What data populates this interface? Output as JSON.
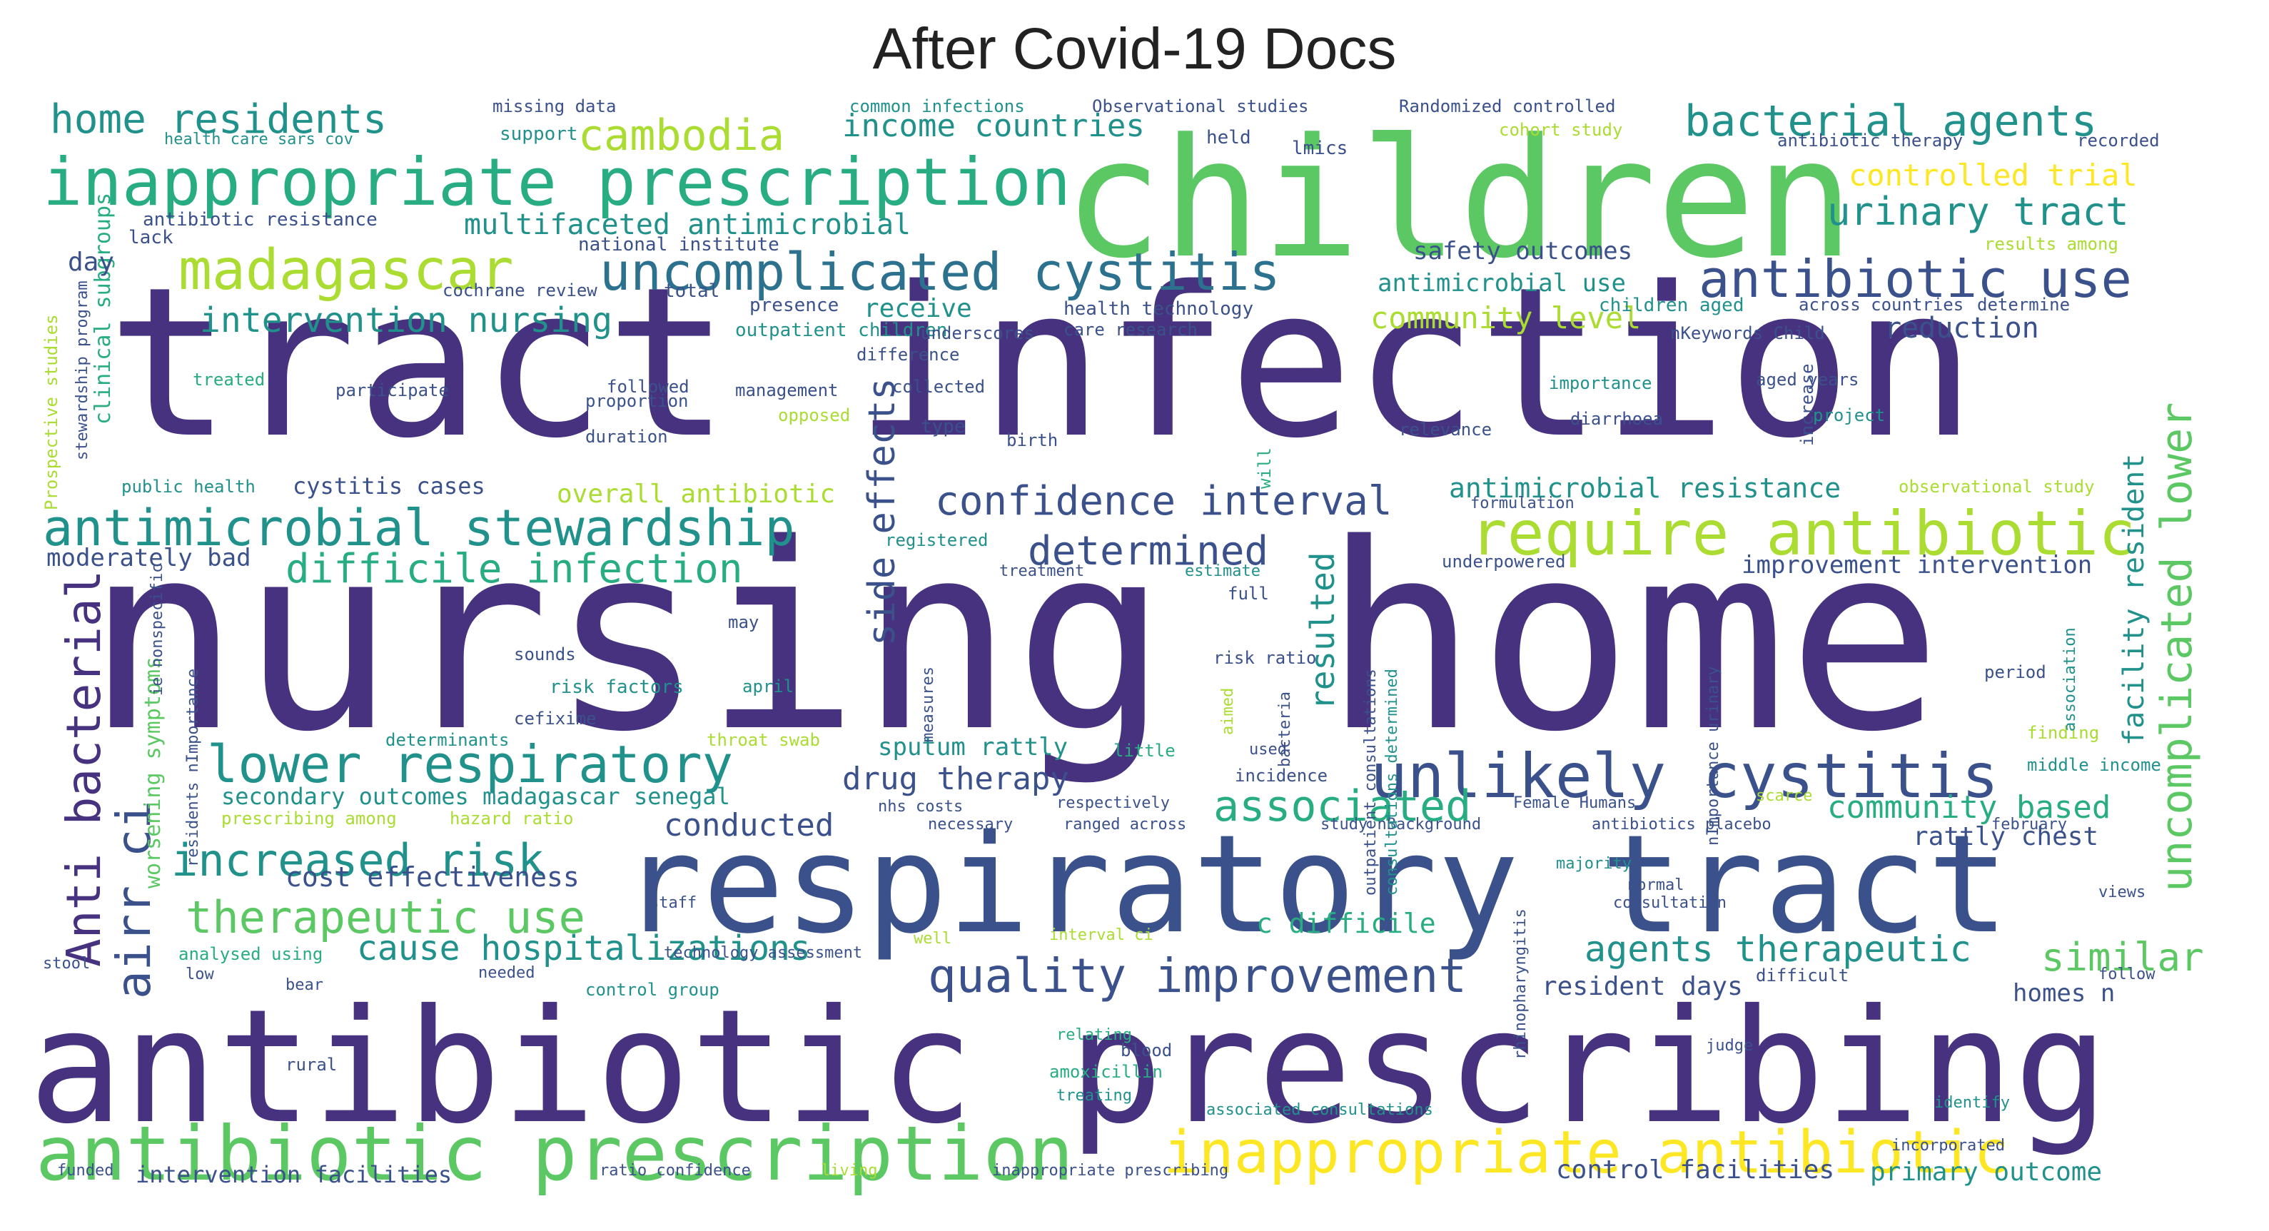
{
  "title": "After Covid-19 Docs",
  "colors": {
    "purple": "#46327e",
    "indigo": "#3b518b",
    "blue": "#2c718e",
    "teal": "#21918c",
    "sea": "#27ad81",
    "green": "#5cc863",
    "lime": "#aadc32",
    "yellow": "#fde725"
  },
  "words": [
    {
      "text": "nursing home",
      "color": "purple"
    },
    {
      "text": "tract infection",
      "color": "purple"
    },
    {
      "text": "antibiotic prescribing",
      "color": "purple"
    },
    {
      "text": "children",
      "color": "green"
    },
    {
      "text": "respiratory tract",
      "color": "indigo"
    },
    {
      "text": "inappropriate prescription",
      "color": "sea"
    },
    {
      "text": "antibiotic prescription",
      "color": "green"
    },
    {
      "text": "inappropriate antibiotic",
      "color": "yellow"
    },
    {
      "text": "unlikely cystitis",
      "color": "indigo"
    },
    {
      "text": "require antibiotic",
      "color": "lime"
    },
    {
      "text": "antimicrobial stewardship",
      "color": "teal"
    },
    {
      "text": "madagascar",
      "color": "lime"
    },
    {
      "text": "uncomplicated cystitis",
      "color": "blue"
    },
    {
      "text": "antibiotic use",
      "color": "indigo"
    },
    {
      "text": "bacterial agents",
      "color": "teal"
    },
    {
      "text": "cambodia",
      "color": "lime"
    },
    {
      "text": "home residents",
      "color": "teal"
    },
    {
      "text": "lower respiratory",
      "color": "teal"
    },
    {
      "text": "quality improvement",
      "color": "indigo"
    },
    {
      "text": "confidence interval",
      "color": "indigo"
    },
    {
      "text": "determined",
      "color": "indigo"
    },
    {
      "text": "increased risk",
      "color": "teal"
    },
    {
      "text": "therapeutic use",
      "color": "green"
    },
    {
      "text": "difficile infection",
      "color": "sea"
    },
    {
      "text": "intervention nursing",
      "color": "teal"
    },
    {
      "text": "associated",
      "color": "sea"
    },
    {
      "text": "urinary tract",
      "color": "teal"
    },
    {
      "text": "income countries",
      "color": "teal"
    },
    {
      "text": "cause hospitalizations",
      "color": "teal"
    },
    {
      "text": "agents therapeutic",
      "color": "teal"
    },
    {
      "text": "similar",
      "color": "green"
    },
    {
      "text": "community based",
      "color": "sea"
    },
    {
      "text": "drug therapy",
      "color": "indigo"
    },
    {
      "text": "conducted",
      "color": "indigo"
    },
    {
      "text": "controlled trial",
      "color": "yellow"
    },
    {
      "text": "multifaceted antimicrobial",
      "color": "teal"
    },
    {
      "text": "community level",
      "color": "lime"
    },
    {
      "text": "safety outcomes",
      "color": "indigo"
    },
    {
      "text": "antimicrobial resistance",
      "color": "teal"
    },
    {
      "text": "overall antibiotic",
      "color": "lime"
    },
    {
      "text": "cost effectiveness",
      "color": "indigo"
    },
    {
      "text": "secondary outcomes madagascar senegal",
      "color": "teal"
    },
    {
      "text": "c difficile",
      "color": "sea"
    },
    {
      "text": "improvement intervention",
      "color": "indigo"
    },
    {
      "text": "rattly chest",
      "color": "indigo"
    },
    {
      "text": "sputum rattly",
      "color": "teal"
    },
    {
      "text": "resident days",
      "color": "indigo"
    },
    {
      "text": "homes n",
      "color": "indigo"
    },
    {
      "text": "primary outcome",
      "color": "teal"
    },
    {
      "text": "control facilities",
      "color": "indigo"
    },
    {
      "text": "intervention facilities",
      "color": "indigo"
    },
    {
      "text": "antimicrobial use",
      "color": "teal"
    },
    {
      "text": "receive",
      "color": "teal"
    },
    {
      "text": "reduction",
      "color": "indigo"
    },
    {
      "text": "moderately bad",
      "color": "indigo"
    },
    {
      "text": "cystitis cases",
      "color": "indigo"
    },
    {
      "text": "Anti bacterial",
      "color": "purple"
    },
    {
      "text": "airr ci",
      "color": "indigo"
    },
    {
      "text": "side effects",
      "color": "indigo"
    },
    {
      "text": "uncomplicated lower",
      "color": "green"
    },
    {
      "text": "facility resident",
      "color": "teal"
    },
    {
      "text": "clinical subgroups",
      "color": "sea"
    },
    {
      "text": "worsening symptoms",
      "color": "green"
    },
    {
      "text": "resulted",
      "color": "teal"
    },
    {
      "text": "day",
      "color": "indigo"
    },
    {
      "text": "missing data",
      "color": "indigo"
    },
    {
      "text": "common infections",
      "color": "teal"
    },
    {
      "text": "Observational studies",
      "color": "indigo"
    },
    {
      "text": "Randomized controlled",
      "color": "indigo"
    },
    {
      "text": "cohort study",
      "color": "lime"
    },
    {
      "text": "antibiotic therapy",
      "color": "indigo"
    },
    {
      "text": "recorded",
      "color": "indigo"
    },
    {
      "text": "lmics",
      "color": "indigo"
    },
    {
      "text": "held",
      "color": "indigo"
    },
    {
      "text": "support",
      "color": "teal"
    },
    {
      "text": "health care sars cov",
      "color": "teal"
    },
    {
      "text": "antibiotic resistance",
      "color": "indigo"
    },
    {
      "text": "national institute",
      "color": "indigo"
    },
    {
      "text": "lack",
      "color": "indigo"
    },
    {
      "text": "cochrane review",
      "color": "indigo"
    },
    {
      "text": "total",
      "color": "indigo"
    },
    {
      "text": "presence",
      "color": "indigo"
    },
    {
      "text": "health technology",
      "color": "indigo"
    },
    {
      "text": "care research",
      "color": "indigo"
    },
    {
      "text": "outpatient children",
      "color": "teal"
    },
    {
      "text": "underscores",
      "color": "indigo"
    },
    {
      "text": "difference",
      "color": "indigo"
    },
    {
      "text": "children aged",
      "color": "teal"
    },
    {
      "text": "across countries",
      "color": "indigo"
    },
    {
      "text": "determine",
      "color": "indigo"
    },
    {
      "text": "results among",
      "color": "lime"
    },
    {
      "text": "nKeywords Child",
      "color": "indigo"
    },
    {
      "text": "treated",
      "color": "sea"
    },
    {
      "text": "participate",
      "color": "indigo"
    },
    {
      "text": "followed",
      "color": "indigo"
    },
    {
      "text": "management",
      "color": "indigo"
    },
    {
      "text": "collected",
      "color": "indigo"
    },
    {
      "text": "importance",
      "color": "teal"
    },
    {
      "text": "aged years",
      "color": "indigo"
    },
    {
      "text": "proportion",
      "color": "indigo"
    },
    {
      "text": "opposed",
      "color": "lime"
    },
    {
      "text": "type",
      "color": "indigo"
    },
    {
      "text": "diarrhoea",
      "color": "indigo"
    },
    {
      "text": "project",
      "color": "teal"
    },
    {
      "text": "duration",
      "color": "indigo"
    },
    {
      "text": "birth",
      "color": "indigo"
    },
    {
      "text": "relevance",
      "color": "indigo"
    },
    {
      "text": "public health",
      "color": "teal"
    },
    {
      "text": "registered",
      "color": "teal"
    },
    {
      "text": "treatment",
      "color": "indigo"
    },
    {
      "text": "estimate",
      "color": "teal"
    },
    {
      "text": "underpowered",
      "color": "indigo"
    },
    {
      "text": "observational study",
      "color": "lime"
    },
    {
      "text": "formulation",
      "color": "indigo"
    },
    {
      "text": "full",
      "color": "indigo"
    },
    {
      "text": "may",
      "color": "indigo"
    },
    {
      "text": "sounds",
      "color": "indigo"
    },
    {
      "text": "risk factors",
      "color": "teal"
    },
    {
      "text": "risk ratio",
      "color": "indigo"
    },
    {
      "text": "april",
      "color": "teal"
    },
    {
      "text": "cefixime",
      "color": "indigo"
    },
    {
      "text": "period",
      "color": "indigo"
    },
    {
      "text": "determinants",
      "color": "teal"
    },
    {
      "text": "throat swab",
      "color": "lime"
    },
    {
      "text": "little",
      "color": "sea"
    },
    {
      "text": "used",
      "color": "indigo"
    },
    {
      "text": "incidence",
      "color": "indigo"
    },
    {
      "text": "finding",
      "color": "lime"
    },
    {
      "text": "middle income",
      "color": "teal"
    },
    {
      "text": "prescribing among",
      "color": "lime"
    },
    {
      "text": "hazard ratio",
      "color": "lime"
    },
    {
      "text": "nhs costs",
      "color": "indigo"
    },
    {
      "text": "respectively",
      "color": "indigo"
    },
    {
      "text": "necessary",
      "color": "indigo"
    },
    {
      "text": "ranged across",
      "color": "indigo"
    },
    {
      "text": "Female Humans",
      "color": "indigo"
    },
    {
      "text": "scarce",
      "color": "lime"
    },
    {
      "text": "study nBackground",
      "color": "indigo"
    },
    {
      "text": "antibiotics placebo",
      "color": "indigo"
    },
    {
      "text": "february",
      "color": "indigo"
    },
    {
      "text": "majority",
      "color": "teal"
    },
    {
      "text": "normal",
      "color": "indigo"
    },
    {
      "text": "consultation",
      "color": "indigo"
    },
    {
      "text": "views",
      "color": "indigo"
    },
    {
      "text": "staff",
      "color": "indigo"
    },
    {
      "text": "well",
      "color": "lime"
    },
    {
      "text": "interval ci",
      "color": "lime"
    },
    {
      "text": "analysed using",
      "color": "sea"
    },
    {
      "text": "technology assessment",
      "color": "indigo"
    },
    {
      "text": "control group",
      "color": "teal"
    },
    {
      "text": "needed",
      "color": "indigo"
    },
    {
      "text": "stool",
      "color": "indigo"
    },
    {
      "text": "low",
      "color": "indigo"
    },
    {
      "text": "bear",
      "color": "indigo"
    },
    {
      "text": "difficult",
      "color": "indigo"
    },
    {
      "text": "follow",
      "color": "indigo"
    },
    {
      "text": "relating",
      "color": "sea"
    },
    {
      "text": "blood",
      "color": "indigo"
    },
    {
      "text": "amoxicillin",
      "color": "sea"
    },
    {
      "text": "treating",
      "color": "teal"
    },
    {
      "text": "judge",
      "color": "indigo"
    },
    {
      "text": "rural",
      "color": "indigo"
    },
    {
      "text": "associated consultations",
      "color": "teal"
    },
    {
      "text": "identify",
      "color": "teal"
    },
    {
      "text": "incorporated",
      "color": "indigo"
    },
    {
      "text": "funded",
      "color": "indigo"
    },
    {
      "text": "ratio confidence",
      "color": "indigo"
    },
    {
      "text": "living",
      "color": "lime"
    },
    {
      "text": "inappropriate prescribing",
      "color": "indigo"
    },
    {
      "text": "Prospective studies",
      "color": "lime"
    },
    {
      "text": "stewardship program",
      "color": "indigo"
    },
    {
      "text": "increase",
      "color": "indigo"
    },
    {
      "text": "ie nonspecific",
      "color": "indigo"
    },
    {
      "text": "outpatient consultations",
      "color": "indigo"
    },
    {
      "text": "consultations determined",
      "color": "teal"
    },
    {
      "text": "nImportance urinary",
      "color": "indigo"
    },
    {
      "text": "association",
      "color": "teal"
    },
    {
      "text": "bacteria",
      "color": "indigo"
    },
    {
      "text": "aimed",
      "color": "lime"
    },
    {
      "text": "rhinopharyngitis",
      "color": "indigo"
    },
    {
      "text": "measures",
      "color": "indigo"
    },
    {
      "text": "residents nImportance",
      "color": "indigo"
    },
    {
      "text": "will",
      "color": "sea"
    }
  ]
}
